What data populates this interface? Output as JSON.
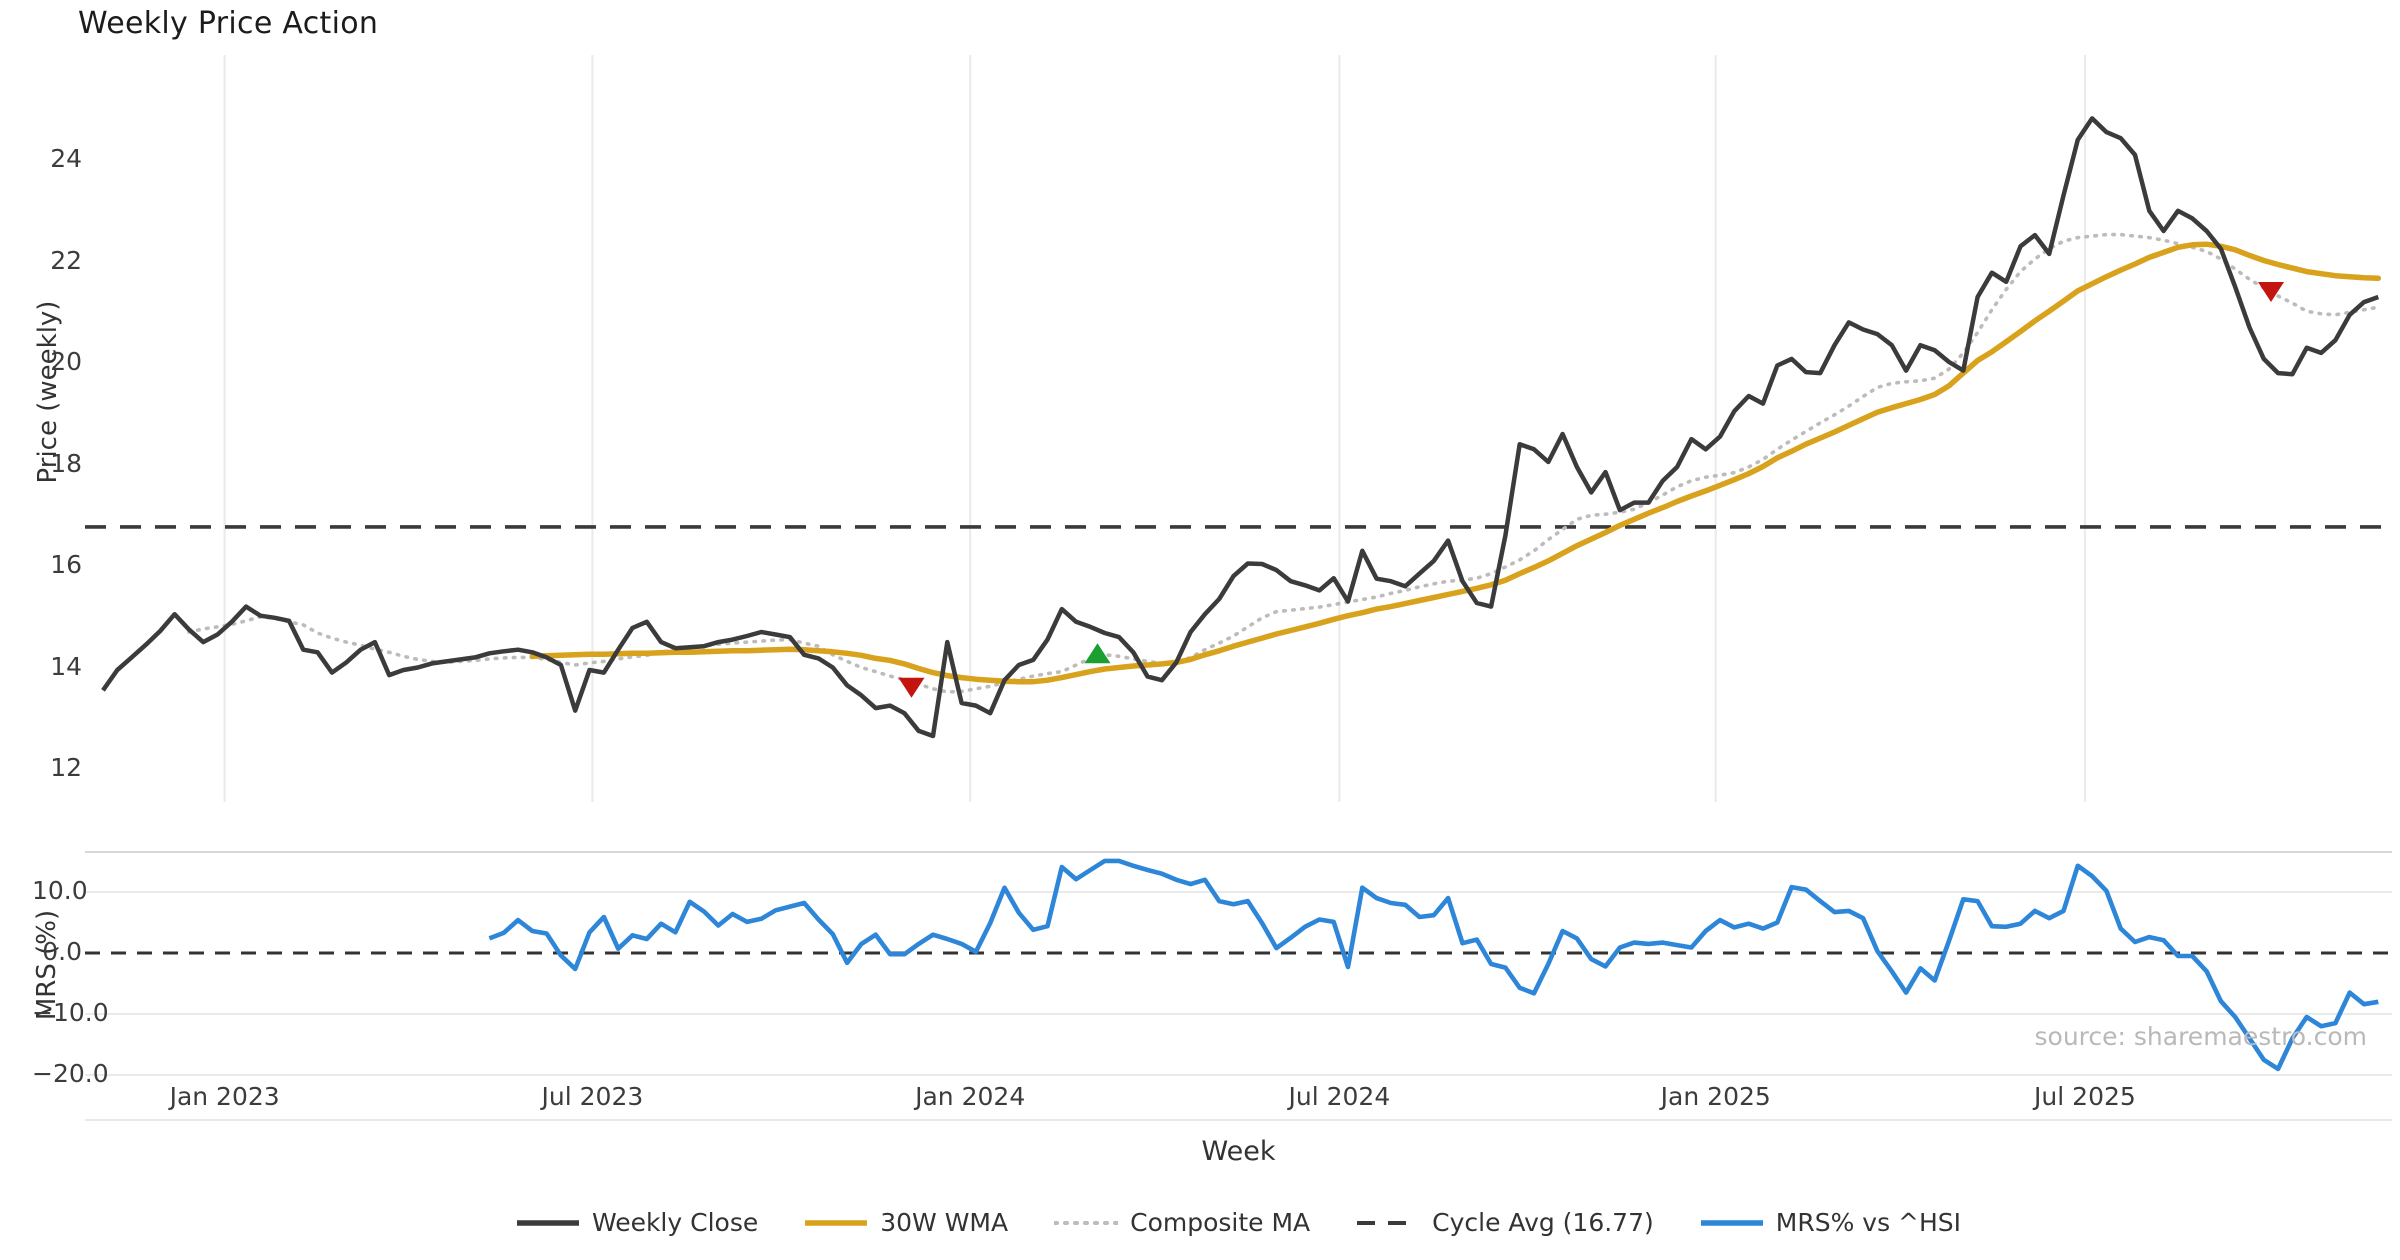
{
  "title": "Weekly Price Action",
  "xlabel": "Week",
  "source_text": "source: sharemaestro.com",
  "colors": {
    "weekly_close": "#3b3b3b",
    "wma": "#d8a21d",
    "composite": "#bdbcba",
    "cycle_avg": "#3a3a3a",
    "mrs": "#2e86d9",
    "marker_down": "#c41410",
    "marker_up": "#1d9e31",
    "grid": "#eaeaea",
    "spine": "#d8d8d8",
    "source": "#b9b9b9"
  },
  "legend": {
    "items": [
      {
        "label": "Weekly Close",
        "style": "solid",
        "color": "#3b3b3b"
      },
      {
        "label": "30W WMA",
        "style": "solid",
        "color": "#d8a21d"
      },
      {
        "label": "Composite MA",
        "style": "dotted",
        "color": "#bdbcba"
      },
      {
        "label": "Cycle Avg (16.77)",
        "style": "dashed",
        "color": "#3a3a3a"
      },
      {
        "label": "MRS% vs ^HSI",
        "style": "solid",
        "color": "#2e86d9"
      }
    ]
  },
  "chart_data": {
    "type": "line",
    "title": "Weekly Price Action",
    "xlabel": "Week",
    "x_unit": "weekly index from first data point (≈ Nov 2022), 1 unit = 1 week",
    "xticks": {
      "weeks": [
        8.5,
        34.2,
        60.6,
        86.4,
        112.7,
        138.5
      ],
      "labels": [
        "Jan 2023",
        "Jul 2023",
        "Jan 2024",
        "Jul 2024",
        "Jan 2025",
        "Jul 2025"
      ]
    },
    "panels": [
      {
        "name": "price",
        "ylabel": "Price (weekly)",
        "ylim": [
          11.4,
          26.0
        ],
        "yticks": [
          24,
          22,
          20,
          18,
          16,
          14,
          12
        ],
        "ytick_labels": [
          "24",
          "22",
          "20",
          "18",
          "16",
          "14",
          "12"
        ],
        "grid": "vertical-only",
        "reference_lines": [
          {
            "name": "Cycle Avg",
            "value": 16.77,
            "style": "dashed"
          }
        ],
        "markers": [
          {
            "week": 56.5,
            "price": 13.6,
            "shape": "triangle-down",
            "color": "#c41410"
          },
          {
            "week": 69.5,
            "price": 14.28,
            "shape": "triangle-up",
            "color": "#1d9e31"
          },
          {
            "week": 151.5,
            "price": 21.4,
            "shape": "triangle-down",
            "color": "#c41410"
          }
        ],
        "series": [
          {
            "name": "Weekly Close",
            "start_week": 0,
            "values": [
              13.55,
              13.95,
              14.2,
              14.45,
              14.72,
              15.05,
              14.75,
              14.5,
              14.65,
              14.9,
              15.2,
              15.02,
              14.98,
              14.92,
              14.35,
              14.3,
              13.9,
              14.1,
              14.35,
              14.5,
              13.85,
              13.95,
              14.0,
              14.08,
              14.12,
              14.16,
              14.2,
              14.28,
              14.32,
              14.35,
              14.3,
              14.2,
              14.05,
              13.15,
              13.95,
              13.9,
              14.35,
              14.78,
              14.9,
              14.5,
              14.38,
              14.4,
              14.42,
              14.5,
              14.55,
              14.62,
              14.7,
              14.65,
              14.6,
              14.25,
              14.18,
              14.0,
              13.65,
              13.45,
              13.2,
              13.25,
              13.1,
              12.75,
              12.65,
              14.5,
              13.3,
              13.25,
              13.1,
              13.75,
              14.05,
              14.15,
              14.55,
              15.15,
              14.9,
              14.8,
              14.68,
              14.6,
              14.3,
              13.82,
              13.75,
              14.1,
              14.7,
              15.05,
              15.35,
              15.8,
              16.05,
              16.04,
              15.92,
              15.7,
              15.62,
              15.52,
              15.76,
              15.3,
              16.3,
              15.75,
              15.7,
              15.6,
              15.85,
              16.1,
              16.5,
              15.7,
              15.27,
              15.2,
              16.6,
              18.4,
              18.3,
              18.05,
              18.6,
              17.95,
              17.45,
              17.85,
              17.1,
              17.25,
              17.25,
              17.68,
              17.95,
              18.5,
              18.3,
              18.55,
              19.05,
              19.35,
              19.2,
              19.95,
              20.08,
              19.82,
              19.8,
              20.35,
              20.8,
              20.66,
              20.57,
              20.35,
              19.85,
              20.35,
              20.25,
              20.02,
              19.85,
              21.3,
              21.78,
              21.6,
              22.3,
              22.52,
              22.15,
              23.3,
              24.4,
              24.82,
              24.55,
              24.43,
              24.1,
              23.0,
              22.6,
              23.0,
              22.85,
              22.6,
              22.25,
              21.5,
              20.7,
              20.08,
              19.8,
              19.78,
              20.3,
              20.2,
              20.45,
              20.95,
              21.2,
              21.3
            ]
          },
          {
            "name": "30W WMA",
            "start_week": 30,
            "values": [
              14.22,
              14.23,
              14.24,
              14.25,
              14.26,
              14.26,
              14.27,
              14.28,
              14.28,
              14.29,
              14.3,
              14.3,
              14.31,
              14.32,
              14.33,
              14.33,
              14.34,
              14.35,
              14.36,
              14.35,
              14.33,
              14.31,
              14.28,
              14.24,
              14.18,
              14.14,
              14.07,
              13.98,
              13.9,
              13.84,
              13.8,
              13.77,
              13.75,
              13.73,
              13.72,
              13.72,
              13.75,
              13.8,
              13.86,
              13.92,
              13.97,
              14.0,
              14.03,
              14.05,
              14.07,
              14.1,
              14.16,
              14.25,
              14.33,
              14.42,
              14.5,
              14.58,
              14.66,
              14.73,
              14.8,
              14.87,
              14.95,
              15.02,
              15.08,
              15.15,
              15.2,
              15.26,
              15.32,
              15.38,
              15.44,
              15.5,
              15.56,
              15.63,
              15.72,
              15.85,
              15.97,
              16.1,
              16.25,
              16.4,
              16.53,
              16.66,
              16.8,
              16.92,
              17.04,
              17.15,
              17.27,
              17.38,
              17.48,
              17.59,
              17.7,
              17.82,
              17.96,
              18.13,
              18.26,
              18.4,
              18.52,
              18.64,
              18.77,
              18.9,
              19.03,
              19.12,
              19.2,
              19.28,
              19.38,
              19.55,
              19.8,
              20.05,
              20.22,
              20.42,
              20.62,
              20.83,
              21.02,
              21.22,
              21.42,
              21.56,
              21.7,
              21.83,
              21.95,
              22.08,
              22.18,
              22.28,
              22.33,
              22.34,
              22.3,
              22.23,
              22.12,
              22.02,
              21.94,
              21.87,
              21.8,
              21.76,
              21.72,
              21.7,
              21.68,
              21.67
            ]
          },
          {
            "name": "Composite MA",
            "start_week": 6,
            "values": [
              14.7,
              14.76,
              14.8,
              14.85,
              14.92,
              15.0,
              14.97,
              14.9,
              14.84,
              14.68,
              14.58,
              14.5,
              14.44,
              14.36,
              14.3,
              14.22,
              14.16,
              14.12,
              14.1,
              14.12,
              14.14,
              14.17,
              14.19,
              14.2,
              14.2,
              14.16,
              14.1,
              14.05,
              14.09,
              14.12,
              14.17,
              14.21,
              14.24,
              14.3,
              14.36,
              14.4,
              14.43,
              14.46,
              14.48,
              14.5,
              14.52,
              14.54,
              14.55,
              14.48,
              14.42,
              14.25,
              14.12,
              14.0,
              13.92,
              13.83,
              13.76,
              13.67,
              13.58,
              13.52,
              13.53,
              13.58,
              13.63,
              13.7,
              13.77,
              13.83,
              13.88,
              13.92,
              14.05,
              14.18,
              14.25,
              14.22,
              14.17,
              14.12,
              14.08,
              14.08,
              14.2,
              14.35,
              14.48,
              14.62,
              14.8,
              14.98,
              15.1,
              15.13,
              15.16,
              15.19,
              15.24,
              15.29,
              15.34,
              15.39,
              15.46,
              15.52,
              15.59,
              15.65,
              15.7,
              15.72,
              15.76,
              15.85,
              15.98,
              16.12,
              16.3,
              16.52,
              16.72,
              16.92,
              17.0,
              17.02,
              17.06,
              17.12,
              17.25,
              17.4,
              17.56,
              17.68,
              17.75,
              17.79,
              17.84,
              17.95,
              18.1,
              18.3,
              18.48,
              18.65,
              18.82,
              18.98,
              19.15,
              19.34,
              19.52,
              19.6,
              19.63,
              19.65,
              19.7,
              19.88,
              20.2,
              20.6,
              21.05,
              21.45,
              21.8,
              22.05,
              22.25,
              22.4,
              22.47,
              22.5,
              22.53,
              22.53,
              22.5,
              22.47,
              22.42,
              22.35,
              22.28,
              22.2,
              22.05,
              21.85,
              21.65,
              21.48,
              21.32,
              21.18,
              21.02,
              20.97,
              20.95,
              21.0,
              21.05,
              21.1
            ]
          }
        ]
      },
      {
        "name": "mrs",
        "ylabel": "MRS (%)",
        "ylim": [
          -22.0,
          16.5
        ],
        "yticks": [
          10.0,
          0.0,
          -10.0,
          -20.0
        ],
        "ytick_labels": [
          "10.0",
          "0.0",
          "−10.0",
          "−20.0"
        ],
        "grid": "horizontal-only",
        "reference_lines": [
          {
            "name": "zero",
            "value": 0,
            "style": "dashed"
          }
        ],
        "series": [
          {
            "name": "MRS% vs ^HSI",
            "start_week": 27,
            "values": [
              2.4,
              3.3,
              5.4,
              3.6,
              3.2,
              -0.4,
              -2.6,
              3.4,
              5.9,
              0.7,
              2.9,
              2.3,
              4.8,
              3.4,
              8.4,
              6.8,
              4.5,
              6.4,
              5.1,
              5.6,
              7.0,
              7.6,
              8.2,
              5.5,
              3.1,
              -1.6,
              1.5,
              3.0,
              -0.2,
              -0.2,
              1.5,
              3.0,
              2.3,
              1.5,
              0.2,
              4.9,
              10.7,
              6.6,
              3.8,
              4.4,
              14.1,
              12.1,
              13.6,
              15.1,
              15.1,
              14.3,
              13.6,
              13.0,
              12.0,
              11.3,
              12.0,
              8.5,
              8.0,
              8.5,
              4.9,
              0.8,
              2.5,
              4.3,
              5.5,
              5.1,
              -2.3,
              10.7,
              9.0,
              8.2,
              7.9,
              5.9,
              6.2,
              9.0,
              1.6,
              2.2,
              -1.8,
              -2.4,
              -5.7,
              -6.6,
              -1.8,
              3.6,
              2.4,
              -1.0,
              -2.2,
              0.9,
              1.7,
              1.5,
              1.7,
              1.3,
              0.9,
              3.6,
              5.4,
              4.2,
              4.8,
              4.0,
              5.0,
              10.8,
              10.4,
              8.5,
              6.7,
              6.9,
              5.7,
              0.3,
              -3.0,
              -6.5,
              -2.5,
              -4.5,
              2.0,
              8.8,
              8.5,
              4.4,
              4.3,
              4.8,
              6.9,
              5.7,
              6.9,
              14.3,
              12.6,
              10.2,
              4.0,
              1.8,
              2.6,
              2.1,
              -0.5,
              -0.5,
              -3.0,
              -7.9,
              -10.5,
              -14.0,
              -17.5,
              -19.0,
              -14.0,
              -10.5,
              -12.0,
              -11.5,
              -6.5,
              -8.4,
              -8.0
            ]
          }
        ]
      }
    ]
  }
}
